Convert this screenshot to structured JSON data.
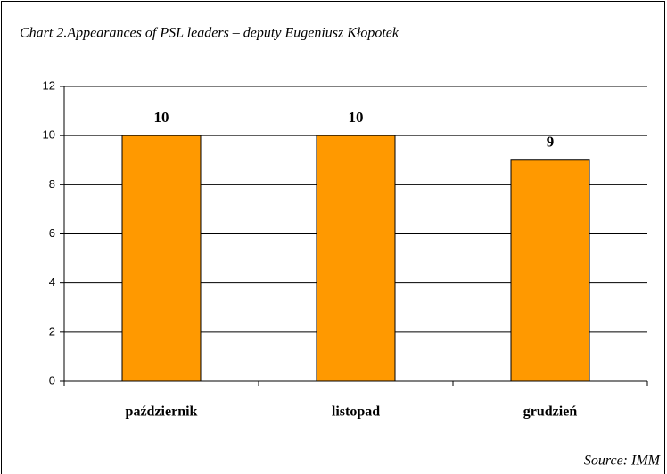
{
  "chart_data": {
    "type": "bar",
    "title": "Chart 2.Appearances of PSL leaders – deputy  Eugeniusz Kłopotek",
    "categories": [
      "październik",
      "listopad",
      "grudzień"
    ],
    "values": [
      10,
      10,
      9
    ],
    "color": "#ff9900",
    "ylim": [
      0,
      12
    ],
    "yticks": [
      0,
      2,
      4,
      6,
      8,
      10,
      12
    ],
    "grid": true,
    "source": "Source: IMM"
  }
}
